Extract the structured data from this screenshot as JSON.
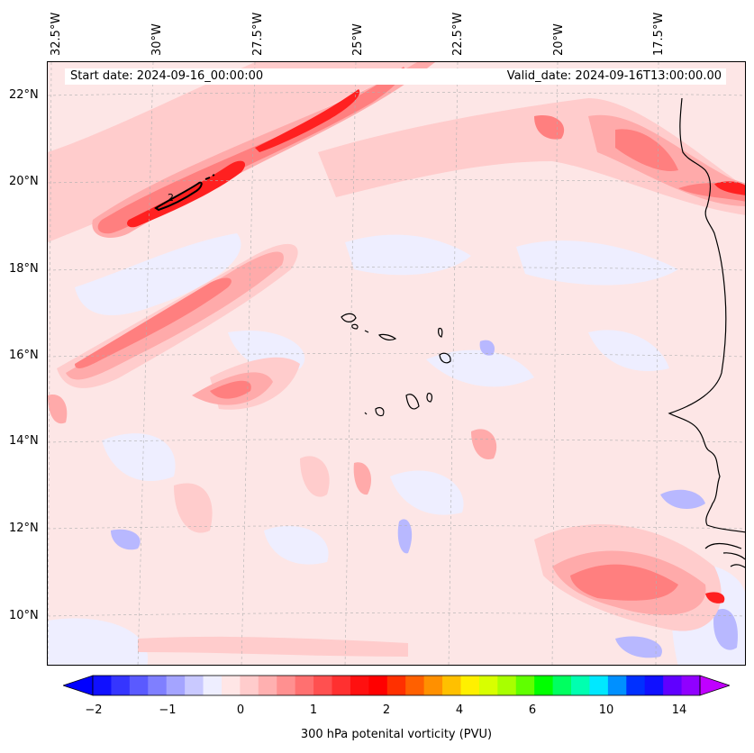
{
  "header": {
    "start_date": "Start date: 2024-09-16_00:00:00",
    "valid_date": "Valid_date: 2024-09-16T13:00:00.00"
  },
  "axes": {
    "longitude_labels": [
      "32.5°W",
      "30°W",
      "27.5°W",
      "25°W",
      "22.5°W",
      "20°W",
      "17.5°W"
    ],
    "latitude_labels": [
      "22°N",
      "20°N",
      "18°N",
      "16°N",
      "14°N",
      "12°N",
      "10°N"
    ]
  },
  "contour_label": "2",
  "colorbar": {
    "label": "300 hPa potenital vorticity (PVU)",
    "ticks": [
      "−2",
      "−1",
      "0",
      "1",
      "2",
      "4",
      "6",
      "10",
      "14"
    ],
    "colors": [
      "#1010ff",
      "#3535ff",
      "#5a5aff",
      "#7f7fff",
      "#a4a4ff",
      "#c9c9ff",
      "#eeeeff",
      "#ffe6e6",
      "#ffcccc",
      "#ffb0b0",
      "#ff9090",
      "#ff7070",
      "#ff5050",
      "#ff3030",
      "#ff1010",
      "#ff0000",
      "#ff3000",
      "#ff6000",
      "#ff9000",
      "#ffc000",
      "#fff000",
      "#d8ff00",
      "#a8ff00",
      "#60ff00",
      "#00ff00",
      "#00ff60",
      "#00ffb0",
      "#00e8ff",
      "#0090ff",
      "#0030ff",
      "#1010ff",
      "#6000ff",
      "#9000ff"
    ],
    "extend_low_color": "#0000ff",
    "extend_high_color": "#c000ff"
  },
  "colors": {
    "background": "#fde6e6",
    "neg_light": "#eeeeff",
    "neg_mid": "#c9c9ff",
    "neg_dark": "#8f8fff",
    "pos_1": "#ffcccc",
    "pos_2": "#ffaaaa",
    "pos_3": "#ff8080",
    "pos_4": "#ff4545",
    "pos_5": "#ff1a1a"
  }
}
